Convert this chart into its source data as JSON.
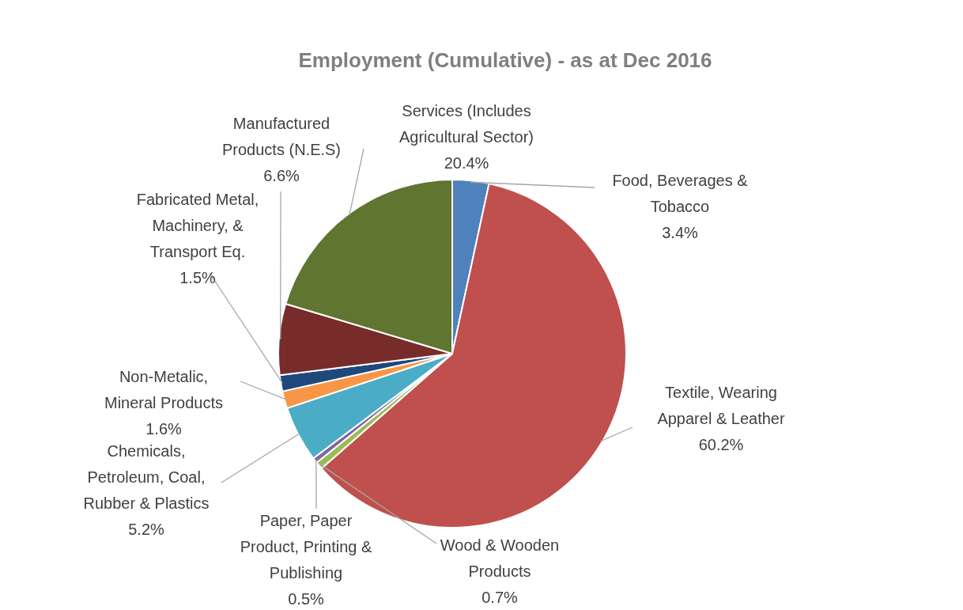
{
  "chart_data": {
    "type": "pie",
    "title": "Employment (Cumulative) - as at Dec 2016",
    "categories": [
      "Food, Beverages &\nTobacco",
      "Textile, Wearing\nApparel & Leather",
      "Wood & Wooden\nProducts",
      "Paper, Paper\nProduct, Printing &\nPublishing",
      "Chemicals,\nPetroleum, Coal,\nRubber & Plastics",
      "Non-Metalic,\nMineral Products",
      "Fabricated Metal,\nMachinery, &\nTransport Eq.",
      "Manufactured\nProducts (N.E.S)",
      "Services (Includes\nAgricultural Sector)"
    ],
    "values": [
      3.4,
      60.2,
      0.7,
      0.5,
      5.2,
      1.6,
      1.5,
      6.6,
      20.4
    ],
    "colors": [
      "#4f81bd",
      "#c0504d",
      "#9bbb59",
      "#8064a2",
      "#4bacc6",
      "#f79646",
      "#1f497d",
      "#772c2a",
      "#5f7530"
    ],
    "value_labels": [
      "3.4%",
      "60.2%",
      "0.7%",
      "0.5%",
      "5.2%",
      "1.6%",
      "1.5%",
      "6.6%",
      "20.4%"
    ],
    "legend": false
  }
}
